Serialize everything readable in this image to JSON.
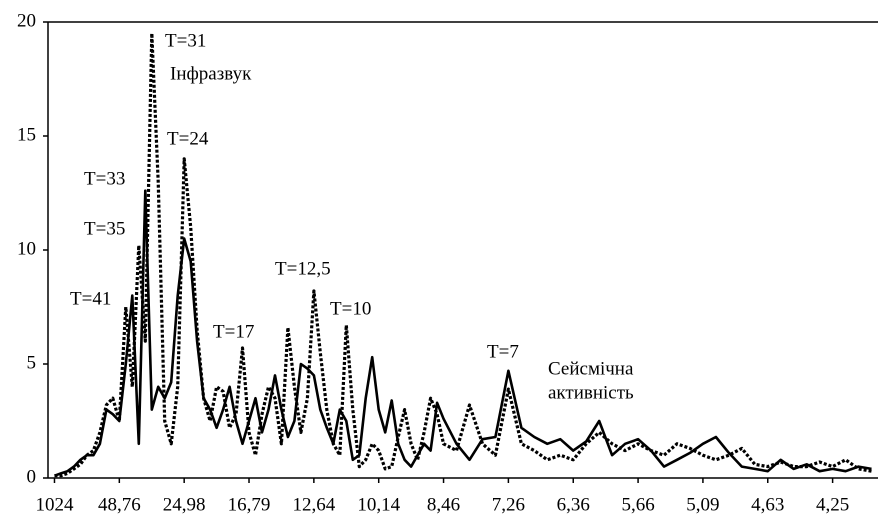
{
  "chart_data": {
    "type": "line",
    "x": [
      0,
      1,
      2,
      3,
      4,
      5,
      6,
      7,
      8,
      9,
      10,
      11,
      12,
      13,
      14,
      15,
      16,
      17,
      18,
      19,
      20,
      21,
      22,
      23,
      24,
      25,
      26,
      27,
      28,
      29,
      30,
      31,
      32,
      33,
      34,
      35,
      36,
      37,
      38,
      39,
      40,
      41,
      42,
      43,
      44,
      45,
      46,
      47,
      48,
      49,
      50,
      51,
      52,
      53,
      54,
      55,
      56,
      57,
      58,
      59,
      60,
      62,
      64,
      66,
      68,
      70,
      72,
      74,
      76,
      78,
      80,
      82,
      84,
      86,
      88,
      90,
      92,
      94,
      96,
      98,
      100,
      102,
      104,
      106,
      108,
      110,
      112,
      114,
      116,
      118,
      120,
      122,
      124,
      126
    ],
    "series": [
      {
        "color": "#000000",
        "style": "dotted",
        "values": [
          0.1,
          0.1,
          0.2,
          0.4,
          0.6,
          1.0,
          1.2,
          2.0,
          3.2,
          3.5,
          2.5,
          7.5,
          4.0,
          10.2,
          6.0,
          19.5,
          13.0,
          2.5,
          1.5,
          4.0,
          14.0,
          11.0,
          6.5,
          3.5,
          2.5,
          4.0,
          3.8,
          2.2,
          2.8,
          5.7,
          2.0,
          1.0,
          2.8,
          4.0,
          3.5,
          1.5,
          6.6,
          4.0,
          2.0,
          3.5,
          8.2,
          5.5,
          3.0,
          1.5,
          1.0,
          6.7,
          3.0,
          0.5,
          0.8,
          1.5,
          1.2,
          0.4,
          0.5,
          1.8,
          3.0,
          1.5,
          0.8,
          2.0,
          3.5,
          2.8,
          1.5,
          1.2,
          3.2,
          1.5,
          1.0,
          3.9,
          1.5,
          1.2,
          0.8,
          1.0,
          0.8,
          1.5,
          2.0,
          1.5,
          1.2,
          1.5,
          1.2,
          1.0,
          1.5,
          1.3,
          1.0,
          0.8,
          1.0,
          1.3,
          0.6,
          0.5,
          0.7,
          0.5,
          0.5,
          0.7,
          0.5,
          0.8,
          0.4,
          0.3
        ]
      },
      {
        "color": "#000000",
        "style": "solid",
        "values": [
          0.1,
          0.2,
          0.3,
          0.5,
          0.8,
          1.0,
          1.0,
          1.5,
          3.0,
          2.8,
          2.5,
          5.0,
          8.0,
          1.5,
          12.6,
          3.0,
          4.0,
          3.5,
          4.2,
          8.0,
          10.5,
          9.5,
          6.0,
          3.5,
          3.0,
          2.2,
          3.0,
          4.0,
          2.5,
          1.5,
          2.5,
          3.5,
          2.0,
          3.0,
          4.5,
          3.0,
          1.8,
          2.5,
          5.0,
          4.8,
          4.5,
          3.0,
          2.2,
          1.5,
          3.0,
          2.5,
          0.8,
          1.0,
          3.5,
          5.3,
          3.0,
          2.0,
          3.4,
          1.5,
          0.8,
          0.5,
          1.0,
          1.5,
          1.2,
          3.3,
          2.6,
          1.5,
          0.8,
          1.7,
          1.8,
          4.7,
          2.2,
          1.8,
          1.5,
          1.7,
          1.2,
          1.6,
          2.5,
          1.0,
          1.5,
          1.7,
          1.2,
          0.5,
          0.8,
          1.1,
          1.5,
          1.8,
          1.1,
          0.5,
          0.4,
          0.3,
          0.8,
          0.4,
          0.6,
          0.3,
          0.4,
          0.3,
          0.5,
          0.4
        ]
      }
    ],
    "xlim": [
      -1,
      127
    ],
    "xticks": [
      {
        "value": 0,
        "label": "1024"
      },
      {
        "value": 10,
        "label": "48,76"
      },
      {
        "value": 20,
        "label": "24,98"
      },
      {
        "value": 30,
        "label": "16,79"
      },
      {
        "value": 40,
        "label": "12,64"
      },
      {
        "value": 50,
        "label": "10,14"
      },
      {
        "value": 60,
        "label": "8,46"
      },
      {
        "value": 70,
        "label": "7,26"
      },
      {
        "value": 80,
        "label": "6,36"
      },
      {
        "value": 90,
        "label": "5,66"
      },
      {
        "value": 100,
        "label": "5,09"
      },
      {
        "value": 110,
        "label": "4,63"
      },
      {
        "value": 120,
        "label": "4,25"
      }
    ],
    "ylim": [
      0,
      20
    ],
    "yticks": [
      0,
      5,
      10,
      15,
      20
    ],
    "annotations": [
      "T=31",
      "Інфразвук",
      "T=24",
      "T=33",
      "T=35",
      "T=41",
      "T=17",
      "T=12,5",
      "T=10",
      "T=7",
      "Сейсмічна",
      "активність"
    ]
  }
}
